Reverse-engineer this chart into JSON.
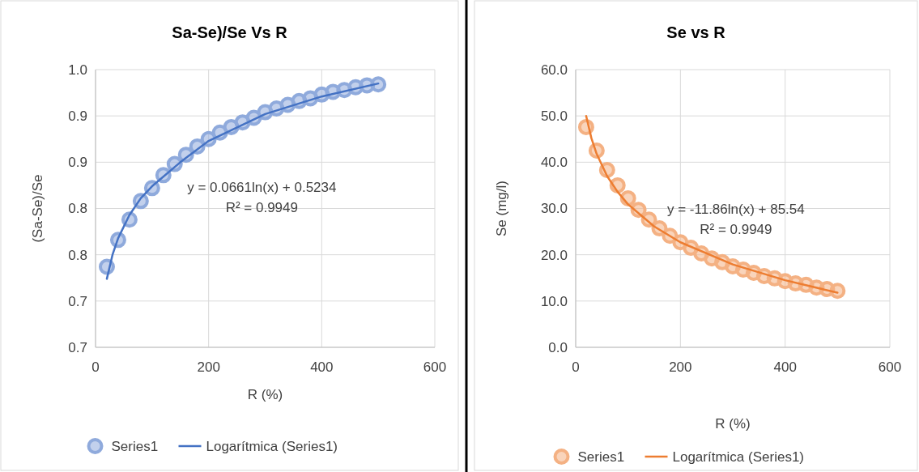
{
  "chart_data": [
    {
      "type": "scatter",
      "title": "Sa-Se)/Se Vs R",
      "xlabel": "R (%)",
      "ylabel": "(Sa-Se)/Se",
      "annotations": [
        "y = 0.0661ln(x) + 0.5234",
        "R² = 0.9949"
      ],
      "series": [
        {
          "name": "Series1",
          "marker": "circle",
          "color": "#8faadc",
          "x": [
            20,
            40,
            60,
            80,
            100,
            120,
            140,
            160,
            180,
            200,
            220,
            240,
            260,
            280,
            300,
            320,
            340,
            360,
            380,
            400,
            420,
            440,
            460,
            480,
            500
          ],
          "values": [
            0.787,
            0.816,
            0.838,
            0.858,
            0.872,
            0.886,
            0.898,
            0.908,
            0.917,
            0.925,
            0.932,
            0.938,
            0.943,
            0.948,
            0.954,
            0.958,
            0.962,
            0.966,
            0.969,
            0.973,
            0.976,
            0.978,
            0.981,
            0.983,
            0.984
          ]
        },
        {
          "name": "Logarítmica (Series1)",
          "type": "line",
          "color": "#4472c4",
          "x": [
            20,
            30,
            40,
            60,
            80,
            100,
            150,
            200,
            300,
            400,
            500
          ],
          "values": [
            0.774,
            0.8,
            0.818,
            0.843,
            0.861,
            0.874,
            0.9,
            0.923,
            0.952,
            0.971,
            0.985
          ]
        }
      ],
      "xlim": [
        0,
        600
      ],
      "xticks": [
        0,
        200,
        400,
        600
      ],
      "ylim": [
        0.7,
        1.0
      ],
      "yticks": [
        {
          "value": 0.7,
          "label": "0.7"
        },
        {
          "value": 0.75,
          "label": "0.7"
        },
        {
          "value": 0.8,
          "label": "0.8"
        },
        {
          "value": 0.85,
          "label": "0.8"
        },
        {
          "value": 0.9,
          "label": "0.9"
        },
        {
          "value": 0.95,
          "label": "0.9"
        },
        {
          "value": 1.0,
          "label": "1.0"
        }
      ],
      "grid": true,
      "legend": "bottom"
    },
    {
      "type": "scatter",
      "title": "Se vs R",
      "xlabel": "R (%)",
      "ylabel": "Se (mg/l)",
      "annotations": [
        "y = -11.86ln(x) + 85.54",
        "R² = 0.9949"
      ],
      "series": [
        {
          "name": "Series1",
          "marker": "circle",
          "color": "#f4b183",
          "x": [
            20,
            40,
            60,
            80,
            100,
            120,
            140,
            160,
            180,
            200,
            220,
            240,
            260,
            280,
            300,
            320,
            340,
            360,
            380,
            400,
            420,
            440,
            460,
            480,
            500
          ],
          "values": [
            47.6,
            42.5,
            38.3,
            35.0,
            32.2,
            29.7,
            27.6,
            25.7,
            24.1,
            22.7,
            21.5,
            20.3,
            19.2,
            18.4,
            17.5,
            16.8,
            16.1,
            15.4,
            14.9,
            14.3,
            13.8,
            13.5,
            12.9,
            12.6,
            12.2
          ]
        },
        {
          "name": "Logarítmica (Series1)",
          "type": "line",
          "color": "#ed7d31",
          "x": [
            20,
            30,
            40,
            60,
            80,
            100,
            150,
            200,
            300,
            400,
            500
          ],
          "values": [
            50.0,
            45.2,
            41.8,
            37.0,
            33.6,
            30.9,
            26.1,
            22.7,
            17.9,
            14.5,
            11.8
          ]
        }
      ],
      "xlim": [
        0,
        600
      ],
      "xticks": [
        0,
        200,
        400,
        600
      ],
      "ylim": [
        0,
        60
      ],
      "yticks": [
        {
          "value": 0,
          "label": "0.0"
        },
        {
          "value": 10,
          "label": "10.0"
        },
        {
          "value": 20,
          "label": "20.0"
        },
        {
          "value": 30,
          "label": "30.0"
        },
        {
          "value": 40,
          "label": "40.0"
        },
        {
          "value": 50,
          "label": "50.0"
        },
        {
          "value": 60,
          "label": "60.0"
        }
      ],
      "grid": true,
      "legend": "bottom"
    }
  ]
}
